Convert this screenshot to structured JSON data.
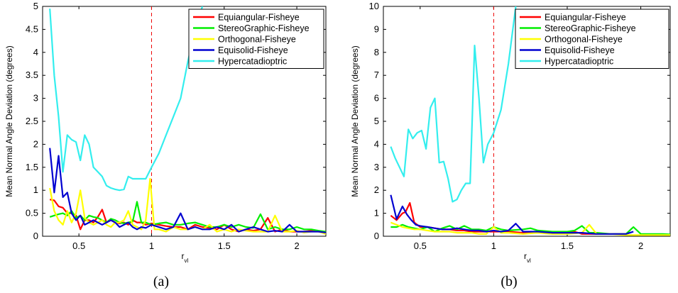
{
  "colors": {
    "Equiangular-Fisheye": "#ff0000",
    "StereoGraphic-Fisheye": "#00ee00",
    "Orthogonal-Fisheye": "#ffff00",
    "Equisolid-Fisheye": "#0000d0",
    "Hypercatadioptric": "#33eeee",
    "refline": "#ee0000"
  },
  "chart_data": [
    {
      "type": "line",
      "caption": "(a)",
      "ylabel": "Mean Normal Angle Deviation (degrees)",
      "xlabel_main": "r",
      "xlabel_sub": "vl",
      "xlim": [
        0.25,
        2.2
      ],
      "ylim": [
        0,
        5
      ],
      "xticks": [
        0.5,
        1,
        1.5,
        2
      ],
      "xtick_labels": [
        "0.5",
        "1",
        "1.5",
        "2"
      ],
      "yticks": [
        0,
        0.5,
        1,
        1.5,
        2,
        2.5,
        3,
        3.5,
        4,
        4.5,
        5
      ],
      "ytick_labels": [
        "0",
        "0.5",
        "1",
        "1.5",
        "2",
        "2.5",
        "3",
        "3.5",
        "4",
        "4.5",
        "5"
      ],
      "vline": 1,
      "legend_position": "top-right",
      "series": [
        {
          "name": "Equiangular-Fisheye",
          "x": [
            0.3,
            0.33,
            0.36,
            0.39,
            0.42,
            0.45,
            0.48,
            0.51,
            0.54,
            0.57,
            0.6,
            0.63,
            0.66,
            0.69,
            0.72,
            0.75,
            0.78,
            0.81,
            0.84,
            0.87,
            0.9,
            0.93,
            0.96,
            1.0,
            1.05,
            1.1,
            1.15,
            1.2,
            1.25,
            1.3,
            1.35,
            1.4,
            1.45,
            1.5,
            1.55,
            1.6,
            1.65,
            1.7,
            1.75,
            1.8,
            1.85,
            1.9,
            1.95,
            2.0,
            2.05,
            2.1,
            2.15,
            2.2
          ],
          "y": [
            0.8,
            0.78,
            0.65,
            0.62,
            0.5,
            0.5,
            0.45,
            0.15,
            0.35,
            0.35,
            0.3,
            0.42,
            0.58,
            0.3,
            0.35,
            0.3,
            0.28,
            0.3,
            0.25,
            0.35,
            0.3,
            0.3,
            0.25,
            0.28,
            0.25,
            0.22,
            0.2,
            0.2,
            0.15,
            0.25,
            0.2,
            0.18,
            0.15,
            0.25,
            0.15,
            0.1,
            0.15,
            0.12,
            0.15,
            0.4,
            0.1,
            0.15,
            0.1,
            0.1,
            0.1,
            0.12,
            0.1,
            0.08
          ]
        },
        {
          "name": "StereoGraphic-Fisheye",
          "x": [
            0.3,
            0.33,
            0.36,
            0.39,
            0.42,
            0.45,
            0.48,
            0.51,
            0.54,
            0.57,
            0.6,
            0.63,
            0.66,
            0.69,
            0.72,
            0.75,
            0.78,
            0.81,
            0.84,
            0.87,
            0.9,
            0.93,
            0.96,
            1.0,
            1.05,
            1.1,
            1.15,
            1.2,
            1.25,
            1.3,
            1.35,
            1.4,
            1.45,
            1.5,
            1.55,
            1.6,
            1.65,
            1.7,
            1.75,
            1.8,
            1.85,
            1.9,
            1.95,
            2.0,
            2.05,
            2.1,
            2.15,
            2.2
          ],
          "y": [
            0.42,
            0.45,
            0.48,
            0.5,
            0.45,
            0.55,
            0.4,
            0.45,
            0.35,
            0.45,
            0.42,
            0.4,
            0.35,
            0.3,
            0.38,
            0.35,
            0.3,
            0.28,
            0.3,
            0.32,
            0.75,
            0.3,
            0.3,
            0.25,
            0.28,
            0.3,
            0.25,
            0.25,
            0.28,
            0.3,
            0.25,
            0.2,
            0.2,
            0.25,
            0.2,
            0.25,
            0.2,
            0.18,
            0.48,
            0.15,
            0.2,
            0.15,
            0.15,
            0.2,
            0.15,
            0.15,
            0.12,
            0.1
          ]
        },
        {
          "name": "Orthogonal-Fisheye",
          "x": [
            0.3,
            0.33,
            0.36,
            0.39,
            0.42,
            0.45,
            0.48,
            0.51,
            0.54,
            0.57,
            0.6,
            0.63,
            0.66,
            0.69,
            0.72,
            0.75,
            0.78,
            0.81,
            0.84,
            0.87,
            0.9,
            0.93,
            0.96,
            0.99,
            1.02,
            1.05,
            1.1,
            1.15,
            1.2,
            1.25,
            1.3,
            1.35,
            1.4,
            1.45,
            1.5,
            1.55,
            1.6,
            1.65,
            1.7,
            1.75,
            1.8,
            1.85,
            1.9,
            1.95,
            2.0,
            2.05,
            2.1,
            2.15,
            2.2
          ],
          "y": [
            1.05,
            0.55,
            0.35,
            0.25,
            0.55,
            0.3,
            0.5,
            1.0,
            0.4,
            0.3,
            0.25,
            0.3,
            0.35,
            0.25,
            0.2,
            0.3,
            0.3,
            0.35,
            0.55,
            0.25,
            0.2,
            0.15,
            0.35,
            1.25,
            0.15,
            0.15,
            0.1,
            0.2,
            0.15,
            0.15,
            0.2,
            0.15,
            0.25,
            0.1,
            0.15,
            0.1,
            0.15,
            0.12,
            0.1,
            0.1,
            0.1,
            0.45,
            0.1,
            0.1,
            0.12,
            0.08,
            0.1,
            0.1,
            0.05
          ]
        },
        {
          "name": "Equisolid-Fisheye",
          "x": [
            0.3,
            0.33,
            0.36,
            0.39,
            0.42,
            0.45,
            0.48,
            0.51,
            0.54,
            0.57,
            0.6,
            0.63,
            0.66,
            0.69,
            0.72,
            0.75,
            0.78,
            0.81,
            0.84,
            0.87,
            0.9,
            0.93,
            0.96,
            1.0,
            1.05,
            1.1,
            1.15,
            1.2,
            1.25,
            1.3,
            1.35,
            1.4,
            1.45,
            1.5,
            1.55,
            1.6,
            1.65,
            1.7,
            1.75,
            1.8,
            1.85,
            1.9,
            1.95,
            2.0,
            2.05,
            2.1,
            2.15,
            2.2
          ],
          "y": [
            1.92,
            0.95,
            1.75,
            0.85,
            0.95,
            0.5,
            0.35,
            0.45,
            0.25,
            0.3,
            0.35,
            0.3,
            0.25,
            0.3,
            0.35,
            0.3,
            0.2,
            0.25,
            0.3,
            0.2,
            0.15,
            0.2,
            0.18,
            0.25,
            0.2,
            0.15,
            0.2,
            0.5,
            0.15,
            0.2,
            0.15,
            0.15,
            0.2,
            0.15,
            0.25,
            0.1,
            0.15,
            0.2,
            0.15,
            0.1,
            0.12,
            0.1,
            0.25,
            0.1,
            0.1,
            0.1,
            0.1,
            0.08
          ]
        },
        {
          "name": "Hypercatadioptric",
          "x": [
            0.3,
            0.33,
            0.36,
            0.39,
            0.42,
            0.45,
            0.48,
            0.51,
            0.54,
            0.57,
            0.6,
            0.63,
            0.66,
            0.69,
            0.72,
            0.75,
            0.78,
            0.81,
            0.84,
            0.87,
            0.9,
            0.93,
            0.96,
            1.0,
            1.05,
            1.1,
            1.15,
            1.2,
            1.25,
            1.3,
            1.35
          ],
          "y": [
            4.95,
            3.5,
            2.6,
            1.4,
            2.2,
            2.1,
            2.05,
            1.65,
            2.2,
            2.0,
            1.5,
            1.4,
            1.3,
            1.1,
            1.05,
            1.02,
            1.0,
            1.02,
            1.3,
            1.25,
            1.25,
            1.25,
            1.25,
            1.5,
            1.8,
            2.2,
            2.6,
            3.0,
            3.8,
            4.5,
            5.0
          ]
        }
      ]
    },
    {
      "type": "line",
      "caption": "(b)",
      "ylabel": "Mean Normal Angle Deviation (degrees)",
      "xlabel_main": "r",
      "xlabel_sub": "vl",
      "xlim": [
        0.25,
        2.2
      ],
      "ylim": [
        0,
        10
      ],
      "xticks": [
        0.5,
        1,
        1.5,
        2
      ],
      "xtick_labels": [
        "0.5",
        "1",
        "1.5",
        "2"
      ],
      "yticks": [
        0,
        1,
        2,
        3,
        4,
        5,
        6,
        7,
        8,
        9,
        10
      ],
      "ytick_labels": [
        "0",
        "1",
        "2",
        "3",
        "4",
        "5",
        "6",
        "7",
        "8",
        "9",
        "10"
      ],
      "vline": 1,
      "legend_position": "top-right",
      "series": [
        {
          "name": "Equiangular-Fisheye",
          "x": [
            0.3,
            0.34,
            0.38,
            0.4,
            0.43,
            0.46,
            0.5,
            0.55,
            0.6,
            0.65,
            0.7,
            0.75,
            0.8,
            0.85,
            0.9,
            0.95,
            1.0,
            1.1,
            1.2,
            1.3,
            1.4,
            1.5,
            1.55,
            1.6,
            1.65,
            1.7,
            1.8,
            1.9
          ],
          "y": [
            0.9,
            0.7,
            1.0,
            1.05,
            1.45,
            0.6,
            0.4,
            0.4,
            0.35,
            0.3,
            0.3,
            0.25,
            0.25,
            0.2,
            0.2,
            0.2,
            0.2,
            0.2,
            0.15,
            0.15,
            0.15,
            0.15,
            0.2,
            0.1,
            0.1,
            0.1,
            0.1,
            0.1
          ]
        },
        {
          "name": "StereoGraphic-Fisheye",
          "x": [
            0.3,
            0.34,
            0.38,
            0.42,
            0.46,
            0.5,
            0.55,
            0.6,
            0.65,
            0.7,
            0.75,
            0.8,
            0.85,
            0.9,
            0.95,
            1.0,
            1.05,
            1.1,
            1.2,
            1.25,
            1.3,
            1.4,
            1.5,
            1.55,
            1.6,
            1.65,
            1.7,
            1.8,
            1.9,
            1.95,
            2.0,
            2.1,
            2.15,
            2.2
          ],
          "y": [
            0.4,
            0.4,
            0.5,
            0.4,
            0.35,
            0.3,
            0.4,
            0.2,
            0.35,
            0.45,
            0.3,
            0.45,
            0.3,
            0.3,
            0.25,
            0.4,
            0.3,
            0.25,
            0.3,
            0.35,
            0.25,
            0.2,
            0.2,
            0.25,
            0.45,
            0.15,
            0.15,
            0.1,
            0.1,
            0.4,
            0.1,
            0.1,
            0.1,
            0.08
          ]
        },
        {
          "name": "Orthogonal-Fisheye",
          "x": [
            0.3,
            0.34,
            0.38,
            0.42,
            0.46,
            0.5,
            0.55,
            0.6,
            0.65,
            0.7,
            0.75,
            0.8,
            0.85,
            0.9,
            0.95,
            1.0,
            1.05,
            1.1,
            1.2,
            1.3,
            1.4,
            1.5,
            1.6,
            1.65,
            1.7,
            1.8,
            1.9,
            2.0,
            2.1,
            2.2
          ],
          "y": [
            0.6,
            0.5,
            0.4,
            0.35,
            0.3,
            0.3,
            0.25,
            0.2,
            0.2,
            0.2,
            0.15,
            0.15,
            0.15,
            0.1,
            0.1,
            0.4,
            0.15,
            0.15,
            0.1,
            0.15,
            0.1,
            0.1,
            0.15,
            0.5,
            0.1,
            0.1,
            0.05,
            0.05,
            0.05,
            0.05
          ]
        },
        {
          "name": "Equisolid-Fisheye",
          "x": [
            0.3,
            0.34,
            0.38,
            0.41,
            0.44,
            0.47,
            0.5,
            0.55,
            0.6,
            0.65,
            0.7,
            0.75,
            0.8,
            0.85,
            0.9,
            0.95,
            1.0,
            1.05,
            1.1,
            1.15,
            1.2,
            1.3,
            1.4,
            1.5,
            1.6,
            1.7,
            1.8,
            1.9,
            1.95
          ],
          "y": [
            1.8,
            0.75,
            1.3,
            0.95,
            0.7,
            0.5,
            0.45,
            0.4,
            0.35,
            0.3,
            0.3,
            0.35,
            0.3,
            0.25,
            0.25,
            0.2,
            0.25,
            0.2,
            0.25,
            0.55,
            0.2,
            0.2,
            0.15,
            0.15,
            0.15,
            0.1,
            0.1,
            0.1,
            0.2
          ]
        },
        {
          "name": "Hypercatadioptric",
          "x": [
            0.3,
            0.33,
            0.36,
            0.39,
            0.42,
            0.45,
            0.48,
            0.51,
            0.54,
            0.57,
            0.6,
            0.63,
            0.66,
            0.69,
            0.72,
            0.75,
            0.78,
            0.81,
            0.84,
            0.87,
            0.9,
            0.93,
            0.96,
            1.0,
            1.05,
            1.1,
            1.15
          ],
          "y": [
            3.9,
            3.4,
            3.0,
            2.6,
            4.65,
            4.25,
            4.5,
            4.6,
            3.8,
            5.6,
            6.0,
            3.2,
            3.25,
            2.5,
            1.5,
            1.6,
            2.0,
            2.3,
            2.3,
            8.3,
            6.0,
            3.2,
            4.0,
            4.5,
            5.5,
            7.5,
            10.0
          ]
        }
      ]
    }
  ]
}
